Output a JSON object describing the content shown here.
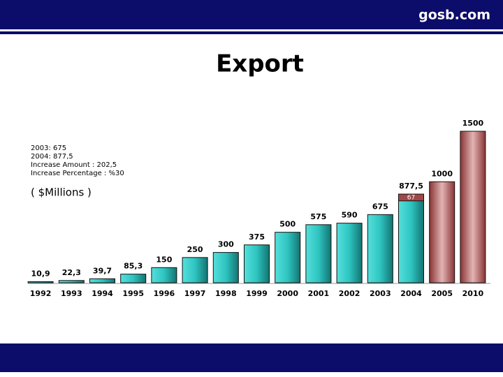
{
  "header": {
    "site": "gosb.com"
  },
  "chart_data": {
    "type": "bar",
    "title": "Export",
    "notes": [
      "2003: 675",
      "2004: 877,5",
      "Increase Amount : 202,5",
      "Increase Percentage : %30"
    ],
    "unit_label": "( $Millions )",
    "categories": [
      "1992",
      "1993",
      "1994",
      "1995",
      "1996",
      "1997",
      "1998",
      "1999",
      "2000",
      "2001",
      "2002",
      "2003",
      "2004",
      "2005",
      "2010"
    ],
    "values": [
      10.9,
      22.3,
      39.7,
      85.3,
      150,
      250,
      300,
      375,
      500,
      575,
      590,
      675,
      877.5,
      1000,
      1500
    ],
    "value_labels": [
      "10,9",
      "22,3",
      "39,7",
      "85,3",
      "150",
      "250",
      "300",
      "375",
      "500",
      "575",
      "590",
      "675",
      "877,5",
      "1000",
      "1500"
    ],
    "colors": [
      "#22b8b4",
      "#22b8b4",
      "#22b8b4",
      "#22b8b4",
      "#22b8b4",
      "#22b8b4",
      "#22b8b4",
      "#22b8b4",
      "#22b8b4",
      "#22b8b4",
      "#22b8b4",
      "#22b8b4",
      "#22b8b4",
      "#a04848",
      "#a04848"
    ],
    "segment": {
      "category": "2004",
      "value": 67,
      "color": "#a04848"
    },
    "ylim": [
      0,
      1500
    ]
  }
}
